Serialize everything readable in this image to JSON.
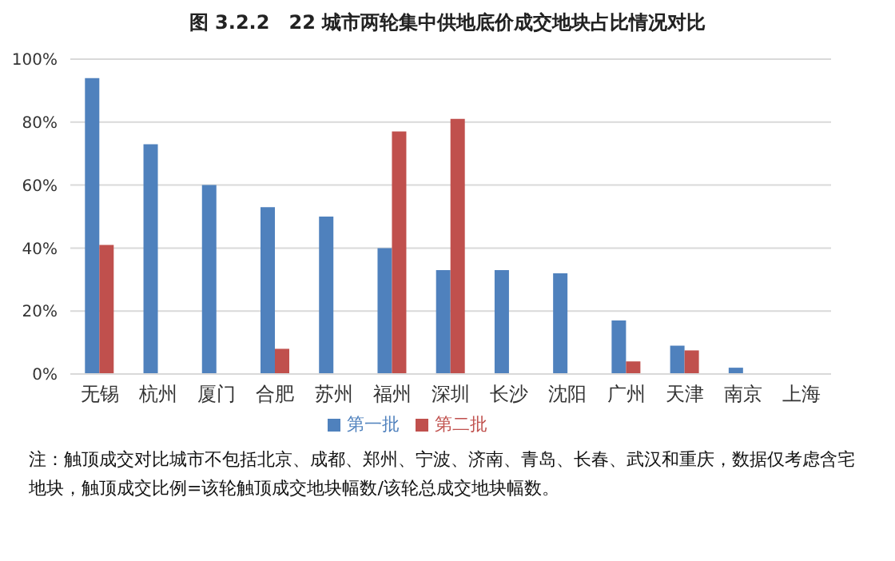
{
  "chart_data": {
    "type": "bar",
    "title": "图 3.2.2　22 城市两轮集中供地底价成交地块占比情况对比",
    "categories": [
      "无锡",
      "杭州",
      "厦门",
      "合肥",
      "苏州",
      "福州",
      "深圳",
      "长沙",
      "沈阳",
      "广州",
      "天津",
      "南京",
      "上海"
    ],
    "series": [
      {
        "name": "第一批",
        "color": "#4f81bd",
        "values": [
          94,
          73,
          60,
          53,
          50,
          40,
          33,
          33,
          32,
          17,
          9,
          2,
          0
        ]
      },
      {
        "name": "第二批",
        "color": "#c0504d",
        "values": [
          41,
          0,
          0,
          8,
          0,
          77,
          81,
          0,
          0,
          4,
          7.5,
          0,
          0
        ]
      }
    ],
    "ylim": [
      0,
      100
    ],
    "yticks": [
      {
        "value": 0,
        "label": "0%"
      },
      {
        "value": 20,
        "label": "20%"
      },
      {
        "value": 40,
        "label": "40%"
      },
      {
        "value": 60,
        "label": "60%"
      },
      {
        "value": 80,
        "label": "80%"
      },
      {
        "value": 100,
        "label": "100%"
      }
    ],
    "grid": "y",
    "legend": "bottom",
    "annotations": [
      "注：触顶成交对比城市不包括北京、成都、郑州、宁波、济南、青岛、长春、武汉和重庆，数据仅考虑含宅地块，触顶成交比例=该轮触顶成交地块幅数/该轮总成交地块幅数。"
    ]
  }
}
